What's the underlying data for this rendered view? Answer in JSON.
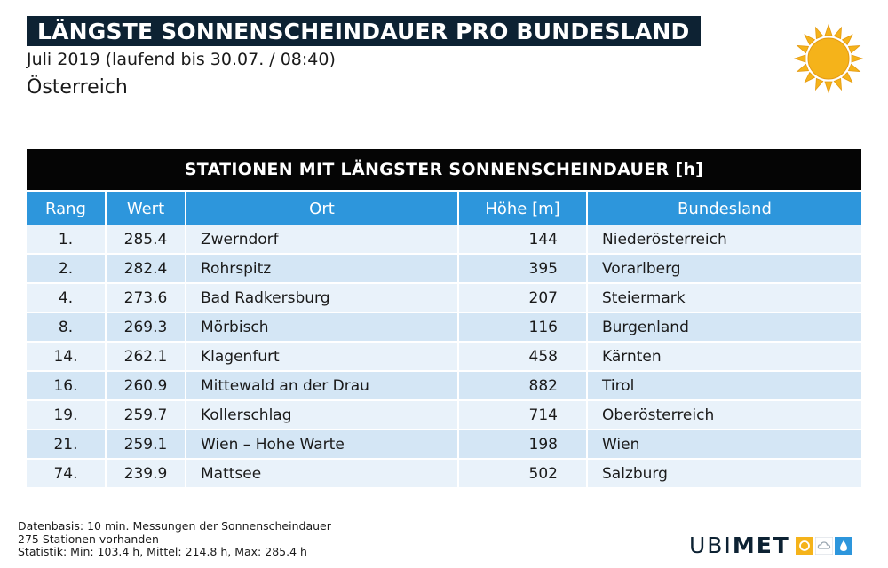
{
  "header": {
    "title": "LÄNGSTE SONNENSCHEINDAUER PRO BUNDESLAND",
    "subtitle": "Juli 2019 (laufend bis 30.07. / 08:40)",
    "region": "Österreich"
  },
  "table": {
    "title": "STATIONEN MIT LÄNGSTER SONNENSCHEINDAUER [h]",
    "columns": {
      "rang": "Rang",
      "wert": "Wert",
      "ort": "Ort",
      "hoehe": "Höhe [m]",
      "bundesland": "Bundesland"
    },
    "rows": [
      {
        "rang": "1.",
        "wert": "285.4",
        "ort": "Zwerndorf",
        "hoehe": "144",
        "bundesland": "Niederösterreich"
      },
      {
        "rang": "2.",
        "wert": "282.4",
        "ort": "Rohrspitz",
        "hoehe": "395",
        "bundesland": "Vorarlberg"
      },
      {
        "rang": "4.",
        "wert": "273.6",
        "ort": "Bad Radkersburg",
        "hoehe": "207",
        "bundesland": "Steiermark"
      },
      {
        "rang": "8.",
        "wert": "269.3",
        "ort": "Mörbisch",
        "hoehe": "116",
        "bundesland": "Burgenland"
      },
      {
        "rang": "14.",
        "wert": "262.1",
        "ort": "Klagenfurt",
        "hoehe": "458",
        "bundesland": "Kärnten"
      },
      {
        "rang": "16.",
        "wert": "260.9",
        "ort": "Mittewald an der Drau",
        "hoehe": "882",
        "bundesland": "Tirol"
      },
      {
        "rang": "19.",
        "wert": "259.7",
        "ort": "Kollerschlag",
        "hoehe": "714",
        "bundesland": "Oberösterreich"
      },
      {
        "rang": "21.",
        "wert": "259.1",
        "ort": "Wien – Hohe Warte",
        "hoehe": "198",
        "bundesland": "Wien"
      },
      {
        "rang": "74.",
        "wert": "239.9",
        "ort": "Mattsee",
        "hoehe": "502",
        "bundesland": "Salzburg"
      }
    ]
  },
  "footer": {
    "notes": [
      "Datenbasis: 10 min. Messungen der Sonnenscheindauer",
      "275 Stationen vorhanden",
      "Statistik: Min: 103.4 h, Mittel: 214.8 h, Max: 285.4 h"
    ],
    "brand": {
      "part1": "UBI",
      "part2": "MET",
      "icons": [
        "sun-square-icon",
        "cloud-square-icon",
        "drop-square-icon"
      ]
    }
  },
  "colors": {
    "title_bg": "#0d2233",
    "table_header": "#2d96dc",
    "row_light": "#e9f2fa",
    "row_dark": "#d4e6f5",
    "sun": "#f5b31a",
    "brand_yellow": "#f5b31a",
    "brand_blue": "#2d96dc"
  },
  "icons": {
    "sun": "sun-icon"
  }
}
